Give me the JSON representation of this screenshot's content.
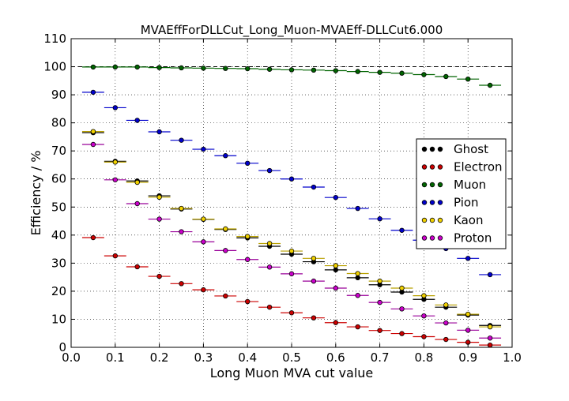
{
  "chart_data": {
    "type": "scatter",
    "title": "MVAEffForDLLCut_Long_Muon-MVAEff-DLLCut6.000",
    "xlabel": "Long Muon MVA cut value",
    "ylabel": "Efficiency / %",
    "xlim": [
      0.0,
      1.0
    ],
    "ylim": [
      0,
      110
    ],
    "xticks": [
      "0.0",
      "0.1",
      "0.2",
      "0.3",
      "0.4",
      "0.5",
      "0.6",
      "0.7",
      "0.8",
      "0.9",
      "1.0"
    ],
    "yticks": [
      "0",
      "10",
      "20",
      "30",
      "40",
      "50",
      "60",
      "70",
      "80",
      "90",
      "100",
      "110"
    ],
    "grid": true,
    "reference_line": 100,
    "legend_position": "center-right",
    "x": [
      0.05,
      0.1,
      0.15,
      0.2,
      0.25,
      0.3,
      0.35,
      0.4,
      0.45,
      0.5,
      0.55,
      0.6,
      0.65,
      0.7,
      0.75,
      0.8,
      0.85,
      0.9,
      0.95
    ],
    "x_bin_halfwidth": 0.025,
    "series": [
      {
        "name": "Ghost",
        "color": "#000000",
        "fill": "#000000",
        "values": [
          76.5,
          66.3,
          59.3,
          54.0,
          49.3,
          45.6,
          42.0,
          39.0,
          36.0,
          33.2,
          30.5,
          27.6,
          24.8,
          22.3,
          19.7,
          17.1,
          14.3,
          11.5,
          7.8
        ]
      },
      {
        "name": "Electron",
        "color": "#cc0000",
        "fill": "#cc0000",
        "values": [
          39.1,
          32.6,
          28.7,
          25.3,
          22.7,
          20.5,
          18.3,
          16.3,
          14.3,
          12.3,
          10.5,
          8.8,
          7.3,
          6.0,
          4.9,
          3.8,
          2.8,
          1.8,
          0.8
        ]
      },
      {
        "name": "Muon",
        "color": "#006400",
        "fill": "#006400",
        "values": [
          99.9,
          99.9,
          99.9,
          99.7,
          99.6,
          99.5,
          99.4,
          99.3,
          99.1,
          98.9,
          98.8,
          98.6,
          98.3,
          98.0,
          97.7,
          97.2,
          96.5,
          95.6,
          93.4
        ]
      },
      {
        "name": "Pion",
        "color": "#0000cc",
        "fill": "#0000cc",
        "values": [
          90.9,
          85.4,
          80.9,
          76.8,
          73.8,
          70.6,
          68.3,
          65.6,
          63.0,
          60.0,
          57.1,
          53.4,
          49.5,
          45.8,
          41.7,
          38.2,
          35.2,
          31.7,
          25.9
        ]
      },
      {
        "name": "Kaon",
        "color": "#b8a000",
        "fill": "#f2d200",
        "values": [
          76.9,
          66.0,
          58.8,
          53.5,
          49.5,
          45.7,
          42.2,
          39.5,
          37.0,
          34.3,
          31.7,
          29.1,
          26.3,
          23.6,
          21.1,
          18.4,
          15.1,
          11.8,
          7.3
        ]
      },
      {
        "name": "Proton",
        "color": "#990099",
        "fill": "#cc00cc",
        "values": [
          72.3,
          59.7,
          51.2,
          45.7,
          41.2,
          37.6,
          34.5,
          31.3,
          28.6,
          26.2,
          23.6,
          21.1,
          18.5,
          16.0,
          13.7,
          11.2,
          8.7,
          6.1,
          3.3
        ]
      }
    ]
  }
}
